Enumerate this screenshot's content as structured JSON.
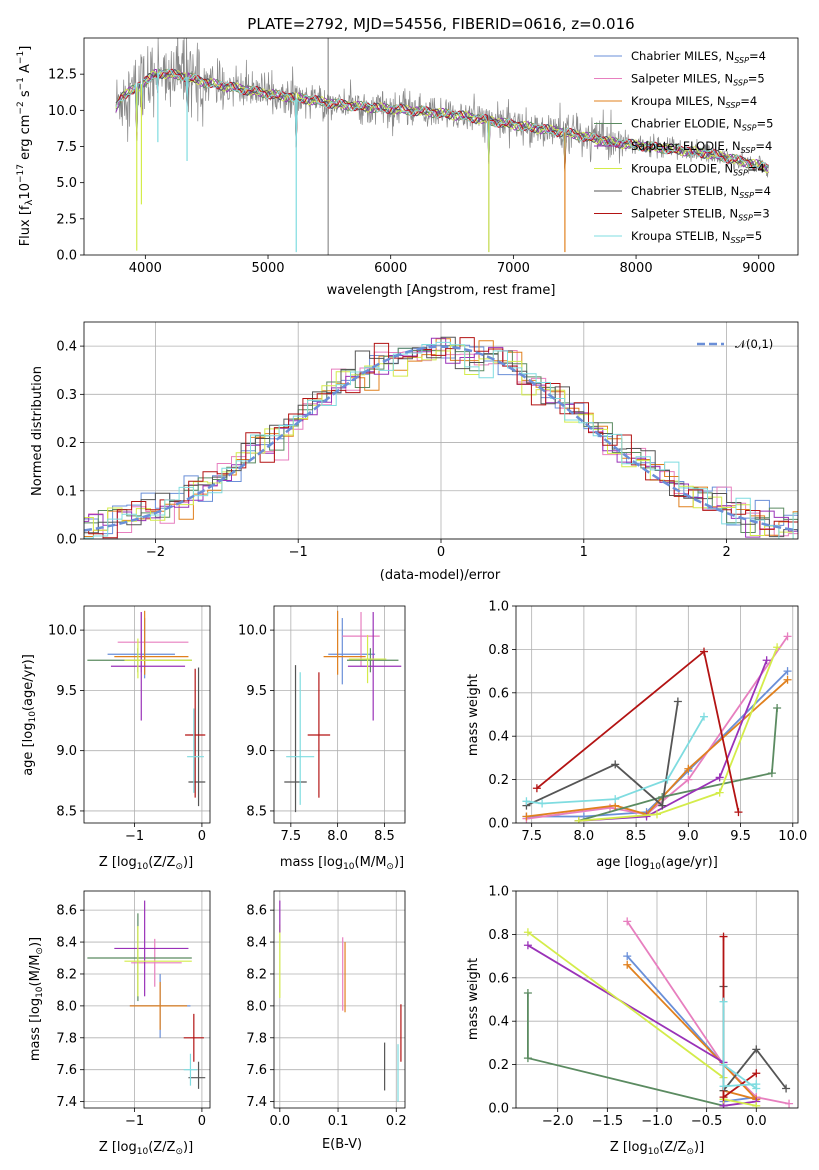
{
  "colors": {
    "chabrier_miles": "#6a8fd8",
    "salpeter_miles": "#e77fbf",
    "kroupa_miles": "#e0801e",
    "chabrier_elodie": "#5b8b61",
    "salpeter_elodie": "#9a32b8",
    "kroupa_elodie": "#d4ec4a",
    "chabrier_stelib": "#555555",
    "salpeter_stelib": "#b31313",
    "kroupa_stelib": "#7fdce0",
    "normal": "#6a8fd8"
  },
  "chart_data": [
    {
      "id": "spectrum",
      "type": "line",
      "title": "PLATE=2792, MJD=54556, FIBERID=0616, z=0.016",
      "xlabel": "wavelength [Angstrom, rest frame]",
      "ylabel": "Flux [f_λ10^-17 erg cm^-2 s^-1 A^-1]",
      "xlim": [
        3500,
        9320
      ],
      "ylim": [
        0,
        15
      ],
      "xticks": [
        "4000",
        "5000",
        "6000",
        "7000",
        "8000",
        "9000"
      ],
      "yticks": [
        "0.0",
        "2.5",
        "5.0",
        "7.5",
        "10.0",
        "12.5"
      ],
      "grid": false,
      "legend_position": "top-right",
      "legend": [
        "Chabrier MILES, N_SSP=4",
        "Salpeter MILES, N_SSP=5",
        "Kroupa MILES, N_SSP=4",
        "Chabrier ELODIE, N_SSP=5",
        "Salpeter ELODIE, N_SSP=4",
        "Kroupa ELODIE, N_SSP=4",
        "Chabrier STELIB, N_SSP=4",
        "Salpeter STELIB, N_SSP=3",
        "Kroupa STELIB, N_SSP=5"
      ],
      "continuum": {
        "x": [
          3760,
          3800,
          3900,
          4000,
          4100,
          4300,
          4500,
          4700,
          4900,
          5100,
          5300,
          5500,
          5700,
          6000,
          6300,
          6600,
          7000,
          7400,
          7800,
          8200,
          8600,
          9000,
          9080
        ],
        "y": [
          10.2,
          10.9,
          11.4,
          12.0,
          12.6,
          12.4,
          11.9,
          11.6,
          11.3,
          11.0,
          10.8,
          10.5,
          10.3,
          10.1,
          9.9,
          9.6,
          9.0,
          8.5,
          7.8,
          7.4,
          7.0,
          6.2,
          6.0
        ]
      },
      "dips": [
        {
          "x": 3930,
          "y": 0.3
        },
        {
          "x": 3968,
          "y": 3.5
        },
        {
          "x": 4102,
          "y": 7.8
        },
        {
          "x": 4340,
          "y": 6.5
        },
        {
          "x": 5230,
          "y": 0.2
        },
        {
          "x": 6800,
          "y": 0.2
        },
        {
          "x": 7420,
          "y": 0.2
        }
      ],
      "spikes": [
        {
          "x": 5490,
          "y": 15.0,
          "low": 0.0
        }
      ]
    },
    {
      "id": "residuals",
      "type": "histogram",
      "xlabel": "(data-model)/error",
      "ylabel": "Normed distribution",
      "xlim": [
        -2.5,
        2.5
      ],
      "ylim": [
        0,
        0.45
      ],
      "xticks": [
        "-2",
        "-1",
        "0",
        "1",
        "2"
      ],
      "yticks": [
        "0.0",
        "0.1",
        "0.2",
        "0.3",
        "0.4"
      ],
      "grid": true,
      "legend_position": "top-right",
      "legend": [
        "𝒩(0,1)"
      ],
      "bin_width": 0.1
    },
    {
      "id": "age-vs-Z",
      "type": "scatter",
      "xlabel": "Z [log10(Z/Z⊙)]",
      "ylabel": "age  [log10(age/yr)]",
      "xlim": [
        -1.75,
        0.12
      ],
      "ylim": [
        8.4,
        10.2
      ],
      "xticks": [
        "-1",
        "0"
      ],
      "xtick_values": [
        -1,
        0
      ],
      "yticks": [
        "8.5",
        "9.0",
        "9.5",
        "10.0"
      ],
      "ytick_values": [
        8.5,
        9.0,
        9.5,
        10.0
      ],
      "grid": true,
      "points": [
        {
          "series": "chabrier_miles",
          "x": -0.85,
          "y": 9.8,
          "xerr": [
            0.55,
            0.45
          ],
          "yerr": [
            0.2,
            0.3
          ]
        },
        {
          "series": "salpeter_miles",
          "x": -0.9,
          "y": 9.9,
          "xerr": [
            0.35,
            0.7
          ],
          "yerr": [
            0.25,
            0.25
          ]
        },
        {
          "series": "kroupa_miles",
          "x": -0.85,
          "y": 9.78,
          "xerr": [
            0.45,
            0.65
          ],
          "yerr": [
            0.15,
            0.38
          ]
        },
        {
          "series": "chabrier_elodie",
          "x": -0.95,
          "y": 9.75,
          "xerr": [
            0.75,
            0.8
          ],
          "yerr": [
            0.1,
            0.1
          ]
        },
        {
          "series": "salpeter_elodie",
          "x": -0.9,
          "y": 9.7,
          "xerr": [
            0.45,
            0.65
          ],
          "yerr": [
            0.45,
            0.45
          ]
        },
        {
          "series": "kroupa_elodie",
          "x": -0.95,
          "y": 9.75,
          "xerr": [
            0.2,
            0.8
          ],
          "yerr": [
            0.15,
            0.18
          ]
        },
        {
          "series": "chabrier_stelib",
          "x": -0.05,
          "y": 8.74,
          "xerr": [
            0.15,
            0.1
          ],
          "yerr": [
            0.2,
            0.95
          ]
        },
        {
          "series": "salpeter_stelib",
          "x": -0.1,
          "y": 9.13,
          "xerr": [
            0.15,
            0.15
          ],
          "yerr": [
            0.52,
            0.55
          ]
        },
        {
          "series": "kroupa_stelib",
          "x": -0.12,
          "y": 8.95,
          "xerr": [
            0.1,
            0.15
          ],
          "yerr": [
            0.3,
            0.4
          ]
        }
      ]
    },
    {
      "id": "age-vs-mass",
      "type": "scatter",
      "xlabel": "mass [log10(M/M⊙)]",
      "ylabel": "",
      "xlim": [
        7.32,
        8.72
      ],
      "ylim": [
        8.4,
        10.2
      ],
      "xticks": [
        "7.5",
        "8.0",
        "8.5"
      ],
      "xtick_values": [
        7.5,
        8.0,
        8.5
      ],
      "yticks": [
        "8.5",
        "9.0",
        "9.5",
        "10.0"
      ],
      "ytick_values": [
        8.5,
        9.0,
        9.5,
        10.0
      ],
      "grid": true,
      "points": [
        {
          "series": "chabrier_miles",
          "x": 8.05,
          "y": 9.8,
          "xerr": [
            0.15,
            0.35
          ],
          "yerr": [
            0.25,
            0.3
          ]
        },
        {
          "series": "salpeter_miles",
          "x": 8.25,
          "y": 9.95,
          "xerr": [
            0.2,
            0.2
          ],
          "yerr": [
            0.25,
            0.2
          ]
        },
        {
          "series": "kroupa_miles",
          "x": 8.0,
          "y": 9.78,
          "xerr": [
            0.15,
            0.3
          ],
          "yerr": [
            0.15,
            0.38
          ]
        },
        {
          "series": "chabrier_elodie",
          "x": 8.35,
          "y": 9.75,
          "xerr": [
            0.25,
            0.3
          ],
          "yerr": [
            0.1,
            0.1
          ]
        },
        {
          "series": "salpeter_elodie",
          "x": 8.38,
          "y": 9.7,
          "xerr": [
            0.27,
            0.3
          ],
          "yerr": [
            0.45,
            0.45
          ]
        },
        {
          "series": "kroupa_elodie",
          "x": 8.32,
          "y": 9.76,
          "xerr": [
            0.2,
            0.2
          ],
          "yerr": [
            0.2,
            0.2
          ]
        },
        {
          "series": "chabrier_stelib",
          "x": 7.55,
          "y": 8.74,
          "xerr": [
            0.12,
            0.12
          ],
          "yerr": [
            0.25,
            0.97
          ]
        },
        {
          "series": "salpeter_stelib",
          "x": 7.8,
          "y": 9.13,
          "xerr": [
            0.12,
            0.12
          ],
          "yerr": [
            0.52,
            0.52
          ]
        },
        {
          "series": "kroupa_stelib",
          "x": 7.6,
          "y": 8.95,
          "xerr": [
            0.15,
            0.15
          ],
          "yerr": [
            0.4,
            0.7
          ]
        }
      ]
    },
    {
      "id": "mass-weight-vs-age",
      "type": "line",
      "xlabel": "age  [log10(age/yr)]",
      "ylabel": "mass weight",
      "xlim": [
        7.35,
        10.05
      ],
      "ylim": [
        0,
        1
      ],
      "xticks": [
        "7.5",
        "8.0",
        "8.5",
        "9.0",
        "9.5",
        "10.0"
      ],
      "xtick_values": [
        7.5,
        8.0,
        8.5,
        9.0,
        9.5,
        10.0
      ],
      "yticks": [
        "0.0",
        "0.2",
        "0.4",
        "0.6",
        "0.8",
        "1.0"
      ],
      "ytick_values": [
        0,
        0.2,
        0.4,
        0.6,
        0.8,
        1.0
      ],
      "grid": true,
      "series": [
        {
          "series": "chabrier_miles",
          "x": [
            7.45,
            8.0,
            8.6,
            9.0,
            9.95
          ],
          "y": [
            0.03,
            0.03,
            0.05,
            0.24,
            0.7
          ]
        },
        {
          "series": "salpeter_miles",
          "x": [
            7.45,
            8.25,
            8.6,
            9.0,
            9.95
          ],
          "y": [
            0.02,
            0.07,
            0.04,
            0.2,
            0.86
          ]
        },
        {
          "series": "kroupa_miles",
          "x": [
            7.45,
            8.3,
            8.6,
            9.0,
            9.95
          ],
          "y": [
            0.03,
            0.08,
            0.04,
            0.25,
            0.66
          ]
        },
        {
          "series": "chabrier_elodie",
          "x": [
            7.95,
            8.75,
            9.8,
            9.85
          ],
          "y": [
            0.01,
            0.12,
            0.23,
            0.53
          ]
        },
        {
          "series": "salpeter_elodie",
          "x": [
            7.95,
            8.6,
            9.3,
            9.75
          ],
          "y": [
            0.01,
            0.03,
            0.21,
            0.75
          ]
        },
        {
          "series": "kroupa_elodie",
          "x": [
            7.95,
            8.7,
            9.3,
            9.85
          ],
          "y": [
            0.01,
            0.04,
            0.14,
            0.81
          ]
        },
        {
          "series": "chabrier_stelib",
          "x": [
            7.45,
            8.3,
            8.75,
            8.9
          ],
          "y": [
            0.08,
            0.27,
            0.08,
            0.56
          ]
        },
        {
          "series": "salpeter_stelib",
          "x": [
            7.55,
            9.15,
            9.48
          ],
          "y": [
            0.16,
            0.79,
            0.05
          ]
        },
        {
          "series": "kroupa_stelib",
          "x": [
            7.45,
            7.6,
            8.3,
            8.8,
            9.15
          ],
          "y": [
            0.1,
            0.09,
            0.11,
            0.2,
            0.49
          ]
        }
      ]
    },
    {
      "id": "mass-vs-Z",
      "type": "scatter",
      "xlabel": "Z [log10(Z/Z⊙)]",
      "ylabel": "mass [log10(M/M⊙)]",
      "xlim": [
        -1.75,
        0.12
      ],
      "ylim": [
        7.36,
        8.72
      ],
      "xticks": [
        "-1",
        "0"
      ],
      "xtick_values": [
        -1,
        0
      ],
      "yticks": [
        "7.4",
        "7.6",
        "7.8",
        "8.0",
        "8.2",
        "8.4",
        "8.6"
      ],
      "ytick_values": [
        7.4,
        7.6,
        7.8,
        8.0,
        8.2,
        8.4,
        8.6
      ],
      "grid": true,
      "points": [
        {
          "series": "chabrier_miles",
          "x": -0.62,
          "y": 8.0,
          "xerr": [
            0.45,
            0.45
          ],
          "yerr": [
            0.2,
            0.2
          ]
        },
        {
          "series": "salpeter_miles",
          "x": -0.7,
          "y": 8.27,
          "xerr": [
            0.35,
            0.4
          ],
          "yerr": [
            0.15,
            0.15
          ]
        },
        {
          "series": "kroupa_miles",
          "x": -0.62,
          "y": 8.0,
          "xerr": [
            0.45,
            0.4
          ],
          "yerr": [
            0.15,
            0.15
          ]
        },
        {
          "series": "chabrier_elodie",
          "x": -0.95,
          "y": 8.3,
          "xerr": [
            0.75,
            0.8
          ],
          "yerr": [
            0.27,
            0.28
          ]
        },
        {
          "series": "salpeter_elodie",
          "x": -0.85,
          "y": 8.36,
          "xerr": [
            0.45,
            0.65
          ],
          "yerr": [
            0.3,
            0.3
          ]
        },
        {
          "series": "kroupa_elodie",
          "x": -0.95,
          "y": 8.28,
          "xerr": [
            0.2,
            0.8
          ],
          "yerr": [
            0.22,
            0.22
          ]
        },
        {
          "series": "chabrier_stelib",
          "x": -0.05,
          "y": 7.55,
          "xerr": [
            0.15,
            0.1
          ],
          "yerr": [
            0.07,
            0.1
          ]
        },
        {
          "series": "salpeter_stelib",
          "x": -0.12,
          "y": 7.8,
          "xerr": [
            0.15,
            0.15
          ],
          "yerr": [
            0.15,
            0.15
          ]
        },
        {
          "series": "kroupa_stelib",
          "x": -0.17,
          "y": 7.6,
          "xerr": [
            0.1,
            0.1
          ],
          "yerr": [
            0.1,
            0.1
          ]
        }
      ]
    },
    {
      "id": "mass-vs-ebv",
      "type": "scatter",
      "xlabel": "E(B-V)",
      "ylabel": "",
      "xlim": [
        -0.01,
        0.215
      ],
      "ylim": [
        7.36,
        8.72
      ],
      "xticks": [
        "0.0",
        "0.1",
        "0.2"
      ],
      "xtick_values": [
        0.0,
        0.1,
        0.2
      ],
      "yticks": [
        "7.4",
        "7.6",
        "7.8",
        "8.0",
        "8.2",
        "8.4",
        "8.6"
      ],
      "ytick_values": [
        7.4,
        7.6,
        7.8,
        8.0,
        8.2,
        8.4,
        8.6
      ],
      "grid": true,
      "points": [
        {
          "series": "kroupa_elodie",
          "x": 0.0,
          "y": 8.28,
          "xerr": [
            0,
            0
          ],
          "yerr": [
            0.23,
            0.23
          ]
        },
        {
          "series": "salpeter_elodie",
          "x": 0.0,
          "y": 8.56,
          "xerr": [
            0,
            0
          ],
          "yerr": [
            0.1,
            0.1
          ]
        },
        {
          "series": "salpeter_miles",
          "x": 0.108,
          "y": 8.2,
          "xerr": [
            0,
            0
          ],
          "yerr": [
            0.23,
            0.23
          ]
        },
        {
          "series": "kroupa_miles",
          "x": 0.112,
          "y": 8.18,
          "xerr": [
            0,
            0
          ],
          "yerr": [
            0.22,
            0.22
          ]
        },
        {
          "series": "chabrier_stelib",
          "x": 0.18,
          "y": 7.62,
          "xerr": [
            0,
            0
          ],
          "yerr": [
            0.15,
            0.15
          ]
        },
        {
          "series": "salpeter_stelib",
          "x": 0.208,
          "y": 7.83,
          "xerr": [
            0,
            0
          ],
          "yerr": [
            0.18,
            0.18
          ]
        },
        {
          "series": "kroupa_stelib",
          "x": 0.203,
          "y": 7.58,
          "xerr": [
            0,
            0
          ],
          "yerr": [
            0.18,
            0.18
          ]
        }
      ]
    },
    {
      "id": "mass-weight-vs-Z",
      "type": "line",
      "xlabel": "Z [log10(Z/Z⊙)]",
      "ylabel": "mass weight",
      "xlim": [
        -2.42,
        0.42
      ],
      "ylim": [
        0,
        1
      ],
      "xticks": [
        "-2.0",
        "-1.5",
        "-1.0",
        "-0.5",
        "0.0"
      ],
      "xtick_values": [
        -2.0,
        -1.5,
        -1.0,
        -0.5,
        0.0
      ],
      "yticks": [
        "0.0",
        "0.2",
        "0.4",
        "0.6",
        "0.8",
        "1.0"
      ],
      "ytick_values": [
        0,
        0.2,
        0.4,
        0.6,
        0.8,
        1.0
      ],
      "grid": true,
      "series": [
        {
          "series": "chabrier_miles",
          "x": [
            -1.3,
            -0.33,
            0.0,
            -0.33
          ],
          "y": [
            0.7,
            0.2,
            0.05,
            0.03
          ]
        },
        {
          "series": "salpeter_miles",
          "x": [
            -1.3,
            -0.33,
            0.0,
            0.33
          ],
          "y": [
            0.86,
            0.2,
            0.05,
            0.02
          ]
        },
        {
          "series": "kroupa_miles",
          "x": [
            -1.3,
            -0.33,
            0.0,
            -0.33
          ],
          "y": [
            0.66,
            0.2,
            0.04,
            0.08
          ]
        },
        {
          "series": "chabrier_elodie",
          "x": [
            -2.3,
            -2.3,
            -0.33
          ],
          "y": [
            0.53,
            0.23,
            0.01
          ]
        },
        {
          "series": "salpeter_elodie",
          "x": [
            -2.3,
            -0.33,
            -0.33,
            0.0
          ],
          "y": [
            0.75,
            0.21,
            0.01,
            0.03
          ]
        },
        {
          "series": "kroupa_elodie",
          "x": [
            -2.3,
            -0.33,
            -0.33,
            0.0
          ],
          "y": [
            0.81,
            0.14,
            0.04,
            0.01
          ]
        },
        {
          "series": "chabrier_stelib",
          "x": [
            0.3,
            0.0,
            -0.33,
            -0.33
          ],
          "y": [
            0.09,
            0.27,
            0.08,
            0.56
          ]
        },
        {
          "series": "salpeter_stelib",
          "x": [
            -0.33,
            -0.33,
            0.0
          ],
          "y": [
            0.79,
            0.05,
            0.16
          ]
        },
        {
          "series": "kroupa_stelib",
          "x": [
            -0.33,
            -0.33,
            0.0,
            0.0,
            -0.33
          ],
          "y": [
            0.49,
            0.1,
            0.11,
            0.09,
            0.2
          ]
        }
      ]
    }
  ]
}
